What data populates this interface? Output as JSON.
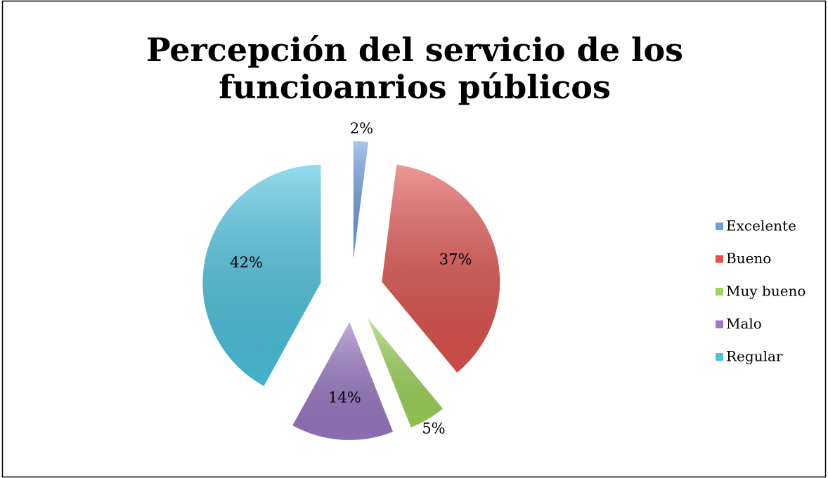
{
  "chart_data": {
    "type": "pie",
    "title": [
      "Percepción del servicio  de los",
      "funcioanrios públicos"
    ],
    "categories": [
      "Excelente",
      "Bueno",
      "Muy bueno",
      "Malo",
      "Regular"
    ],
    "values": [
      2,
      37,
      5,
      14,
      42
    ],
    "value_labels": [
      "2%",
      "37%",
      "5%",
      "14%",
      "42%"
    ],
    "colors": [
      "#6f9fe0",
      "#e0534f",
      "#9fd55a",
      "#9a78c4",
      "#4cc4e0"
    ],
    "legend": "right"
  }
}
